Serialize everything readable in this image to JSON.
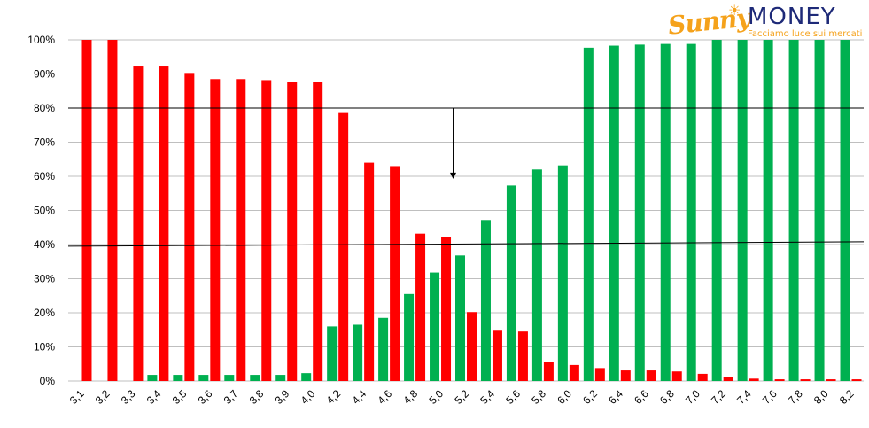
{
  "logo": {
    "brand_left": "Sunny",
    "brand_right": "MONEY",
    "tagline": "Facciamo luce sui mercati"
  },
  "colors": {
    "red_series": "#ff0000",
    "green_series": "#00b050",
    "gridline": "#bfbfbf",
    "line": "#000000"
  },
  "chart_data": {
    "type": "bar",
    "title": "",
    "xlabel": "",
    "ylabel": "",
    "ylim": [
      0,
      1
    ],
    "y_ticks": [
      "0%",
      "10%",
      "20%",
      "30%",
      "40%",
      "50%",
      "60%",
      "70%",
      "80%",
      "90%",
      "100%"
    ],
    "grid": true,
    "categories": [
      "3,1",
      "3,2",
      "3,3",
      "3,4",
      "3,5",
      "3,6",
      "3,7",
      "3,8",
      "3,9",
      "4,0",
      "4,2",
      "4,4",
      "4,6",
      "4,8",
      "5,0",
      "5,2",
      "5,4",
      "5,6",
      "5,8",
      "6,0",
      "6,2",
      "6,4",
      "6,6",
      "6,8",
      "7,0",
      "7,2",
      "7,4",
      "7,6",
      "7,8",
      "8,0",
      "8,2"
    ],
    "series": [
      {
        "color": "green",
        "values": [
          0,
          0,
          0,
          0.018,
          0.018,
          0.018,
          0.018,
          0.018,
          0.018,
          0.023,
          0.16,
          0.165,
          0.185,
          0.255,
          0.318,
          0.368,
          0.472,
          0.573,
          0.62,
          0.632,
          0.977,
          0.983,
          0.986,
          0.988,
          0.988,
          1.0,
          1.0,
          1.0,
          1.0,
          1.0,
          1.0
        ]
      },
      {
        "color": "red",
        "values": [
          1.0,
          1.0,
          0.922,
          0.922,
          0.903,
          0.885,
          0.885,
          0.882,
          0.877,
          0.877,
          0.788,
          0.64,
          0.63,
          0.432,
          0.422,
          0.202,
          0.15,
          0.145,
          0.055,
          0.047,
          0.038,
          0.031,
          0.031,
          0.028,
          0.021,
          0.012,
          0.007,
          0.005,
          0.005,
          0.005,
          0.005
        ]
      }
    ],
    "annotations": {
      "upper_line": {
        "y_start": 0.8,
        "y_end": 0.8
      },
      "lower_line": {
        "y_start": 0.395,
        "y_end": 0.408
      },
      "arrow": {
        "category_index": 14.5,
        "y_from": 0.8,
        "y_to": 0.595
      }
    }
  }
}
